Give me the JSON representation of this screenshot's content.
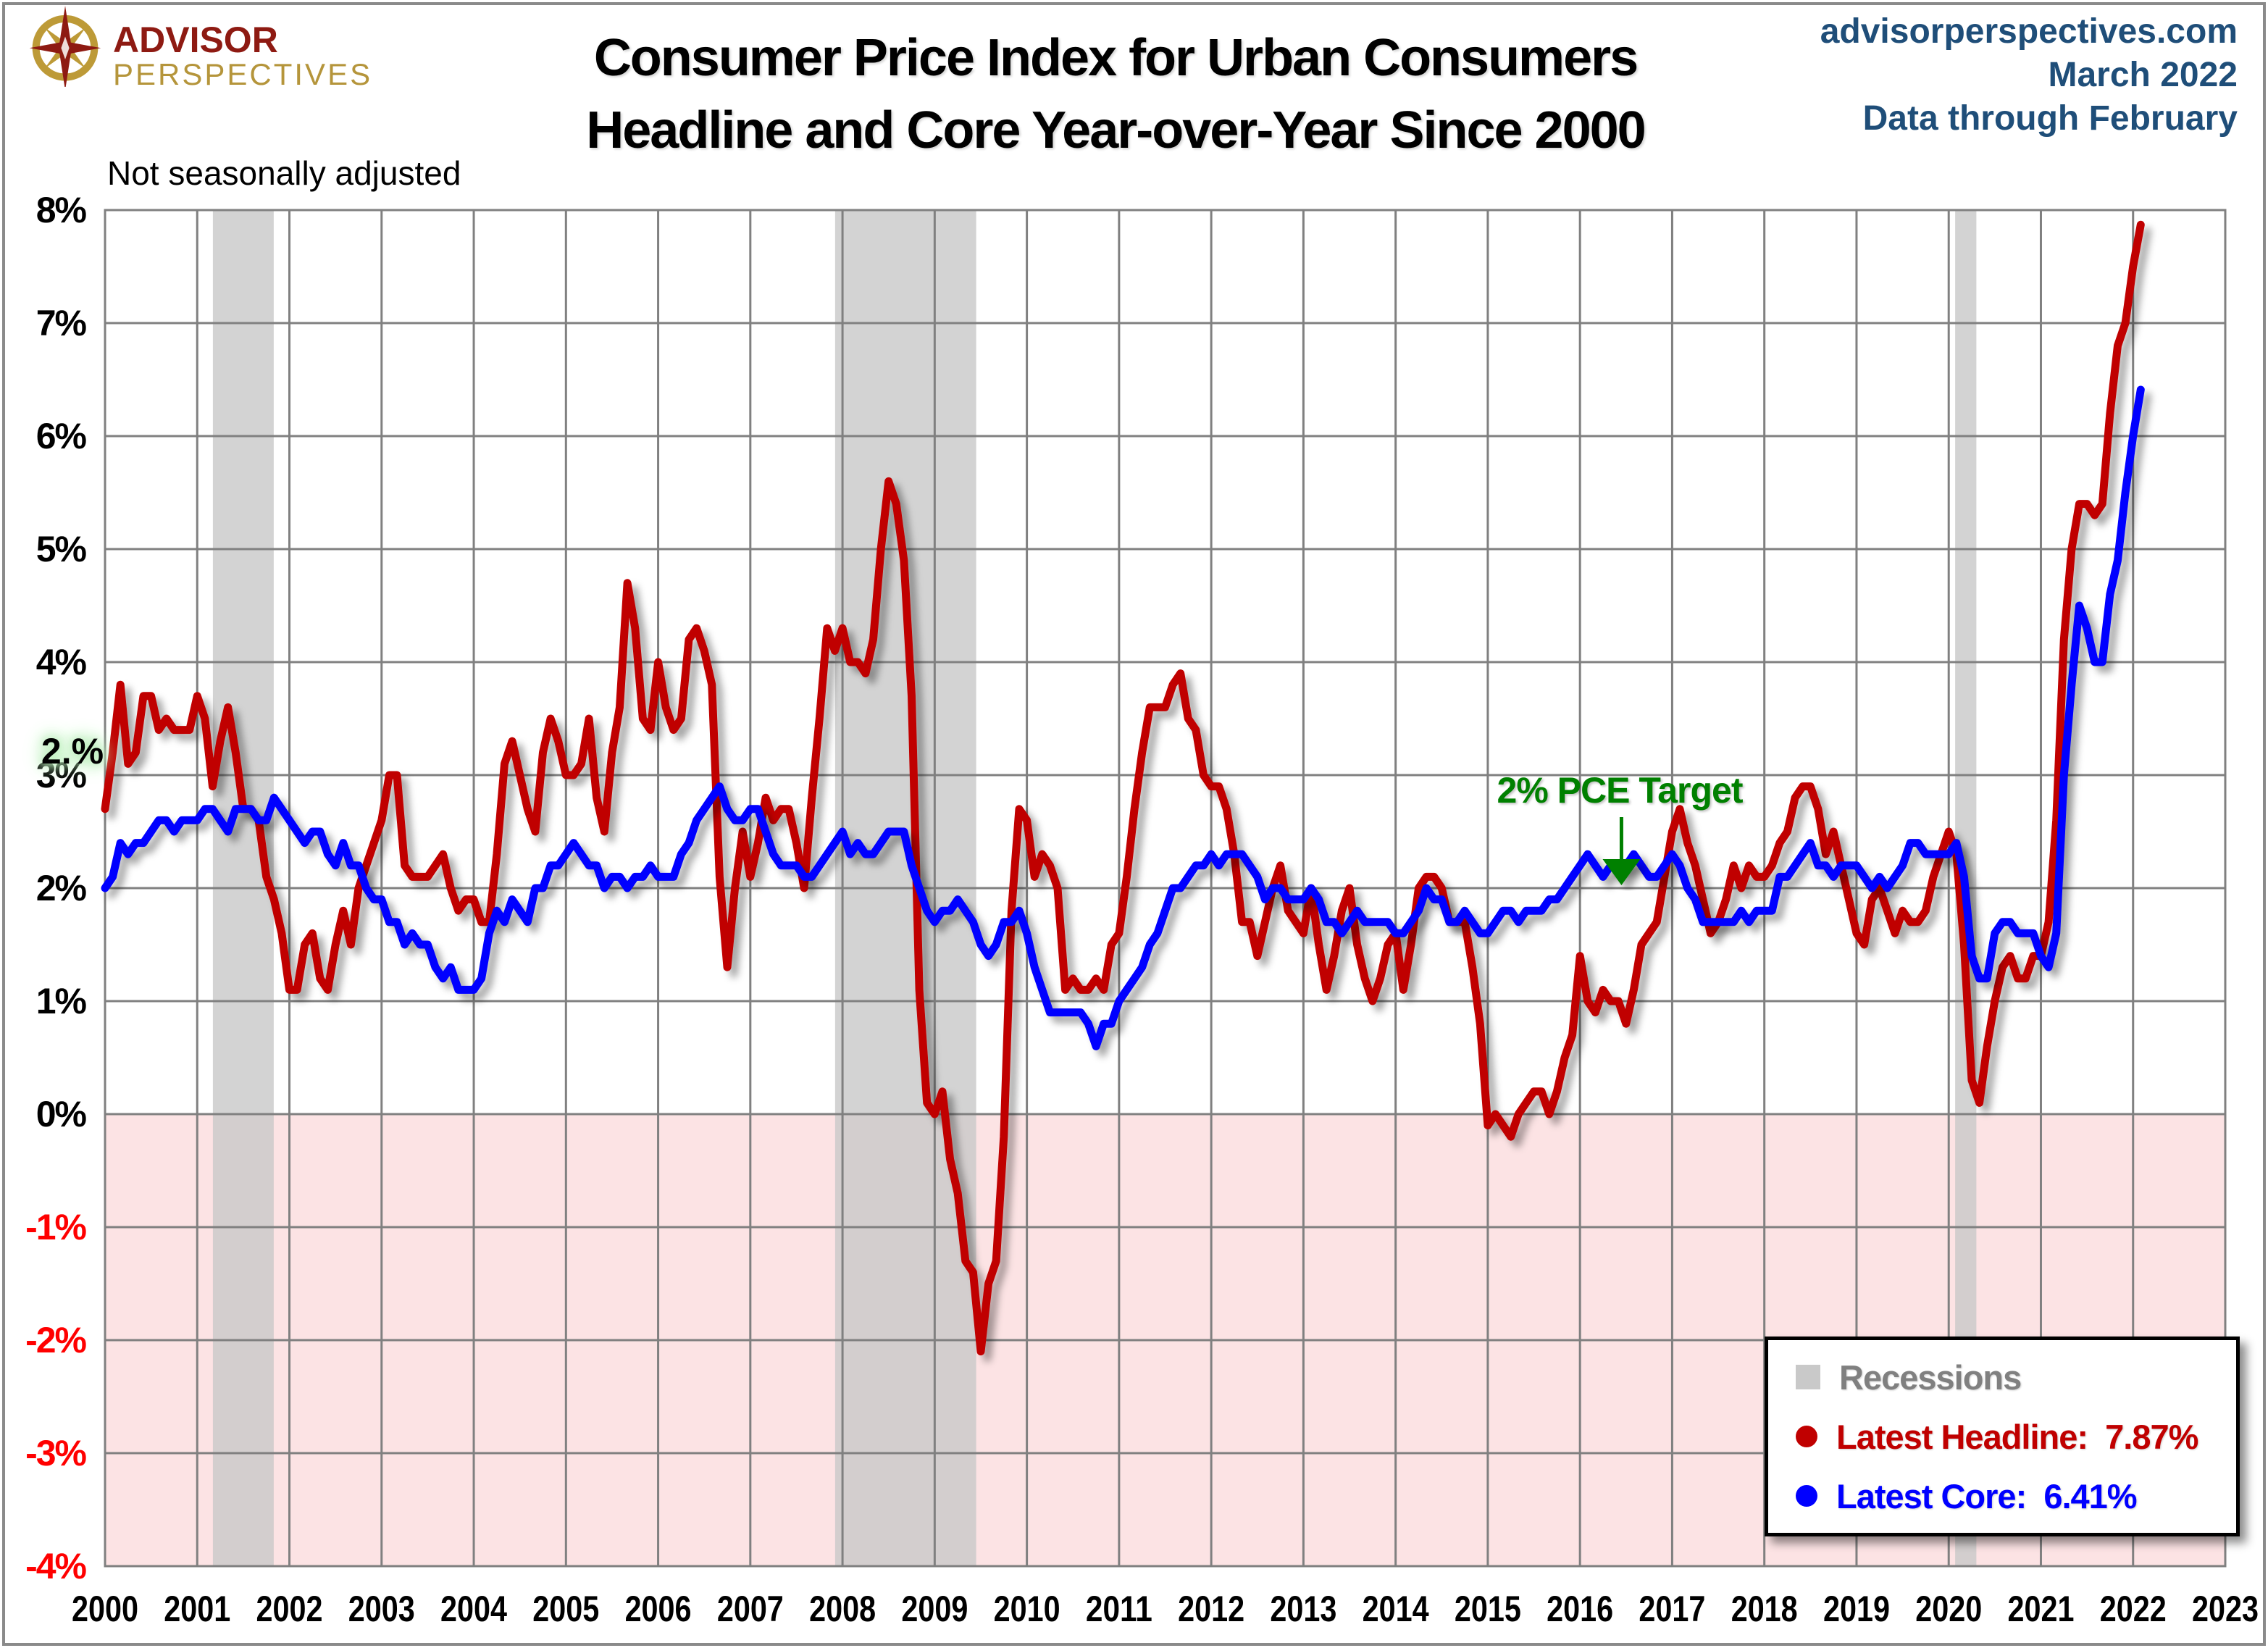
{
  "header": {
    "logo_line1": "ADVISOR",
    "logo_line2": "PERSPECTIVES",
    "title_line1": "Consumer Price Index for Urban Consumers",
    "title_line2": "Headline and Core Year-over-Year Since 2000",
    "site": "advisorperspectives.com",
    "date": "March 2022",
    "through": "Data through February"
  },
  "subtitle": "Not seasonally adjusted",
  "annotations": {
    "stray_axis_label": "2.%",
    "pce_target": "2% PCE Target"
  },
  "legend": {
    "recessions": "Recessions",
    "headline": "Latest Headline:  7.87%",
    "core": "Latest Core:  6.41%"
  },
  "colors": {
    "headline": "#c00000",
    "core": "#0000ff",
    "target_line": "#00a651",
    "annotation_green": "#008000",
    "zero_line": "#000000",
    "grid": "#808080",
    "recession_band": "rgba(200,200,200,0.8)",
    "negative_area": "#fce3e4",
    "negative_tick": "#ff0000",
    "tick": "#000000",
    "header_blue": "#1f4e79",
    "legend_gray": "#808080"
  },
  "chart_data": {
    "type": "line",
    "title": "Consumer Price Index for Urban Consumers — Headline and Core Year-over-Year Since 2000",
    "note": "Not seasonally adjusted",
    "xlim": [
      2000,
      2023
    ],
    "ylim": [
      -4,
      8
    ],
    "x_ticks": [
      2000,
      2001,
      2002,
      2003,
      2004,
      2005,
      2006,
      2007,
      2008,
      2009,
      2010,
      2011,
      2012,
      2013,
      2014,
      2015,
      2016,
      2017,
      2018,
      2019,
      2020,
      2021,
      2022,
      2023
    ],
    "y_ticks": [
      {
        "value": 8,
        "label": "8%"
      },
      {
        "value": 7,
        "label": "7%"
      },
      {
        "value": 6,
        "label": "6%"
      },
      {
        "value": 5,
        "label": "5%"
      },
      {
        "value": 4,
        "label": "4%"
      },
      {
        "value": 3,
        "label": "3%"
      },
      {
        "value": 2,
        "label": "2%"
      },
      {
        "value": 1,
        "label": "1%"
      },
      {
        "value": 0,
        "label": "0%"
      },
      {
        "value": -1,
        "label": "-1%"
      },
      {
        "value": -2,
        "label": "-2%"
      },
      {
        "value": -3,
        "label": "-3%"
      },
      {
        "value": -4,
        "label": "-4%"
      }
    ],
    "target_line_value": 2,
    "zero_line_value": 0,
    "recessions": [
      {
        "start": 2001.17,
        "end": 2001.83
      },
      {
        "start": 2007.92,
        "end": 2009.45
      },
      {
        "start": 2020.07,
        "end": 2020.3
      }
    ],
    "start_year": 2000,
    "start_month": 1,
    "series": [
      {
        "name": "Headline CPI YoY",
        "latest": "7.87%",
        "values": [
          2.7,
          3.2,
          3.8,
          3.1,
          3.2,
          3.7,
          3.7,
          3.4,
          3.5,
          3.4,
          3.4,
          3.4,
          3.7,
          3.5,
          2.9,
          3.3,
          3.6,
          3.2,
          2.7,
          2.7,
          2.6,
          2.1,
          1.9,
          1.6,
          1.1,
          1.1,
          1.5,
          1.6,
          1.2,
          1.1,
          1.5,
          1.8,
          1.5,
          2.0,
          2.2,
          2.4,
          2.6,
          3.0,
          3.0,
          2.2,
          2.1,
          2.1,
          2.1,
          2.2,
          2.3,
          2.0,
          1.8,
          1.9,
          1.9,
          1.7,
          1.7,
          2.3,
          3.1,
          3.3,
          3.0,
          2.7,
          2.5,
          3.2,
          3.5,
          3.3,
          3.0,
          3.0,
          3.1,
          3.5,
          2.8,
          2.5,
          3.2,
          3.6,
          4.7,
          4.3,
          3.5,
          3.4,
          4.0,
          3.6,
          3.4,
          3.5,
          4.2,
          4.3,
          4.1,
          3.8,
          2.1,
          1.3,
          2.0,
          2.5,
          2.1,
          2.4,
          2.8,
          2.6,
          2.7,
          2.7,
          2.4,
          2.0,
          2.8,
          3.5,
          4.3,
          4.1,
          4.3,
          4.0,
          4.0,
          3.9,
          4.2,
          5.0,
          5.6,
          5.4,
          4.9,
          3.7,
          1.1,
          0.1,
          0.0,
          0.2,
          -0.4,
          -0.7,
          -1.3,
          -1.4,
          -2.1,
          -1.5,
          -1.3,
          -0.2,
          1.8,
          2.7,
          2.6,
          2.1,
          2.3,
          2.2,
          2.0,
          1.1,
          1.2,
          1.1,
          1.1,
          1.2,
          1.1,
          1.5,
          1.6,
          2.1,
          2.7,
          3.2,
          3.6,
          3.6,
          3.6,
          3.8,
          3.9,
          3.5,
          3.4,
          3.0,
          2.9,
          2.9,
          2.7,
          2.3,
          1.7,
          1.7,
          1.4,
          1.7,
          2.0,
          2.2,
          1.8,
          1.7,
          1.6,
          2.0,
          1.5,
          1.1,
          1.4,
          1.8,
          2.0,
          1.5,
          1.2,
          1.0,
          1.2,
          1.5,
          1.6,
          1.1,
          1.5,
          2.0,
          2.1,
          2.1,
          2.0,
          1.7,
          1.7,
          1.7,
          1.3,
          0.8,
          -0.1,
          0.0,
          -0.1,
          -0.2,
          0.0,
          0.1,
          0.2,
          0.2,
          0.0,
          0.2,
          0.5,
          0.7,
          1.4,
          1.0,
          0.9,
          1.1,
          1.0,
          1.0,
          0.8,
          1.1,
          1.5,
          1.6,
          1.7,
          2.1,
          2.5,
          2.7,
          2.4,
          2.2,
          1.9,
          1.6,
          1.7,
          1.9,
          2.2,
          2.0,
          2.2,
          2.1,
          2.1,
          2.2,
          2.4,
          2.5,
          2.8,
          2.9,
          2.9,
          2.7,
          2.3,
          2.5,
          2.2,
          1.9,
          1.6,
          1.5,
          1.9,
          2.0,
          1.8,
          1.6,
          1.8,
          1.7,
          1.7,
          1.8,
          2.1,
          2.3,
          2.5,
          2.3,
          1.5,
          0.3,
          0.1,
          0.6,
          1.0,
          1.3,
          1.4,
          1.2,
          1.2,
          1.4,
          1.4,
          1.7,
          2.6,
          4.2,
          5.0,
          5.4,
          5.4,
          5.3,
          5.4,
          6.2,
          6.8,
          7.0,
          7.5,
          7.87
        ]
      },
      {
        "name": "Core CPI YoY",
        "latest": "6.41%",
        "values": [
          2.0,
          2.1,
          2.4,
          2.3,
          2.4,
          2.4,
          2.5,
          2.6,
          2.6,
          2.5,
          2.6,
          2.6,
          2.6,
          2.7,
          2.7,
          2.6,
          2.5,
          2.7,
          2.7,
          2.7,
          2.6,
          2.6,
          2.8,
          2.7,
          2.6,
          2.5,
          2.4,
          2.5,
          2.5,
          2.3,
          2.2,
          2.4,
          2.2,
          2.2,
          2.0,
          1.9,
          1.9,
          1.7,
          1.7,
          1.5,
          1.6,
          1.5,
          1.5,
          1.3,
          1.2,
          1.3,
          1.1,
          1.1,
          1.1,
          1.2,
          1.6,
          1.8,
          1.7,
          1.9,
          1.8,
          1.7,
          2.0,
          2.0,
          2.2,
          2.2,
          2.3,
          2.4,
          2.3,
          2.2,
          2.2,
          2.0,
          2.1,
          2.1,
          2.0,
          2.1,
          2.1,
          2.2,
          2.1,
          2.1,
          2.1,
          2.3,
          2.4,
          2.6,
          2.7,
          2.8,
          2.9,
          2.7,
          2.6,
          2.6,
          2.7,
          2.7,
          2.5,
          2.3,
          2.2,
          2.2,
          2.2,
          2.1,
          2.1,
          2.2,
          2.3,
          2.4,
          2.5,
          2.3,
          2.4,
          2.3,
          2.3,
          2.4,
          2.5,
          2.5,
          2.5,
          2.2,
          2.0,
          1.8,
          1.7,
          1.8,
          1.8,
          1.9,
          1.8,
          1.7,
          1.5,
          1.4,
          1.5,
          1.7,
          1.7,
          1.8,
          1.6,
          1.3,
          1.1,
          0.9,
          0.9,
          0.9,
          0.9,
          0.9,
          0.8,
          0.6,
          0.8,
          0.8,
          1.0,
          1.1,
          1.2,
          1.3,
          1.5,
          1.6,
          1.8,
          2.0,
          2.0,
          2.1,
          2.2,
          2.2,
          2.3,
          2.2,
          2.3,
          2.3,
          2.3,
          2.2,
          2.1,
          1.9,
          2.0,
          2.0,
          1.9,
          1.9,
          1.9,
          2.0,
          1.9,
          1.7,
          1.7,
          1.6,
          1.7,
          1.8,
          1.7,
          1.7,
          1.7,
          1.7,
          1.6,
          1.6,
          1.7,
          1.8,
          2.0,
          1.9,
          1.9,
          1.7,
          1.7,
          1.8,
          1.7,
          1.6,
          1.6,
          1.7,
          1.8,
          1.8,
          1.7,
          1.8,
          1.8,
          1.8,
          1.9,
          1.9,
          2.0,
          2.1,
          2.2,
          2.3,
          2.2,
          2.1,
          2.2,
          2.2,
          2.2,
          2.3,
          2.2,
          2.1,
          2.1,
          2.2,
          2.3,
          2.2,
          2.0,
          1.9,
          1.7,
          1.7,
          1.7,
          1.7,
          1.7,
          1.8,
          1.7,
          1.8,
          1.8,
          1.8,
          2.1,
          2.1,
          2.2,
          2.3,
          2.4,
          2.2,
          2.2,
          2.1,
          2.2,
          2.2,
          2.2,
          2.1,
          2.0,
          2.1,
          2.0,
          2.1,
          2.2,
          2.4,
          2.4,
          2.3,
          2.3,
          2.3,
          2.3,
          2.4,
          2.1,
          1.4,
          1.2,
          1.2,
          1.6,
          1.7,
          1.7,
          1.6,
          1.6,
          1.6,
          1.4,
          1.3,
          1.6,
          3.0,
          3.8,
          4.5,
          4.3,
          4.0,
          4.0,
          4.6,
          4.9,
          5.5,
          6.0,
          6.41
        ]
      }
    ]
  }
}
